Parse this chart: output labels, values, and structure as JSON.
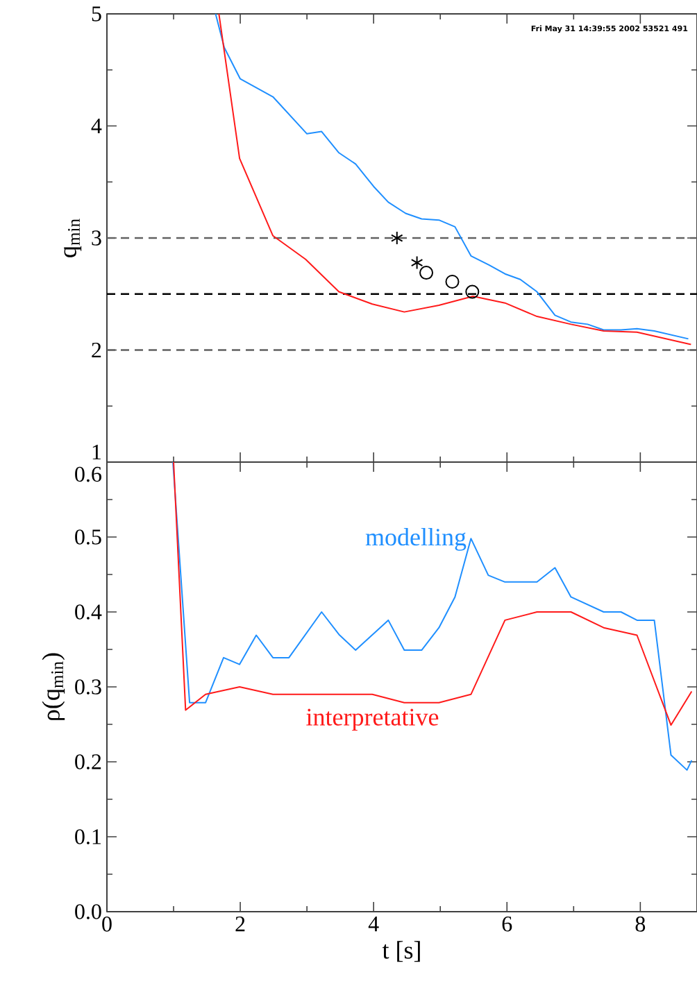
{
  "chart_data": [
    {
      "type": "line",
      "ylabel": "q$_{min}$",
      "xlim": [
        0,
        8.85
      ],
      "xticks": [
        0,
        2,
        4,
        6,
        8
      ],
      "ylim": [
        1,
        5
      ],
      "yticks": [
        1,
        2,
        3,
        4,
        5
      ],
      "tick_labels": "y",
      "annotations": [
        "Fri May 31 14:39:55 2002 53521 491"
      ],
      "ref_lines": [
        {
          "axis": "y",
          "value": 3,
          "color": "#606060",
          "line_style": "dashed"
        },
        {
          "axis": "y",
          "value": 2.5,
          "color": "#000000",
          "line_style": "dashed"
        },
        {
          "axis": "y",
          "value": 2,
          "color": "#606060",
          "line_style": "dashed"
        }
      ],
      "series": [
        {
          "color": "#1f8fff",
          "x": [
            1.63,
            1.76,
            2.0,
            2.49,
            3.0,
            3.22,
            3.48,
            3.73,
            4.0,
            4.22,
            4.48,
            4.72,
            4.98,
            5.22,
            5.46,
            5.73,
            5.97,
            6.2,
            6.45,
            6.72,
            6.96,
            7.21,
            7.45,
            7.71,
            7.95,
            8.21,
            8.72
          ],
          "values": [
            5,
            4.7,
            4.42,
            4.26,
            3.93,
            3.95,
            3.76,
            3.66,
            3.46,
            3.32,
            3.22,
            3.17,
            3.16,
            3.1,
            2.84,
            2.76,
            2.68,
            2.63,
            2.52,
            2.31,
            2.25,
            2.23,
            2.18,
            2.18,
            2.19,
            2.17,
            2.1
          ]
        },
        {
          "color": "#ff1a1a",
          "x": [
            1.68,
            1.99,
            2.49,
            2.98,
            3.48,
            3.98,
            4.46,
            4.98,
            5.49,
            5.97,
            6.45,
            6.96,
            7.45,
            7.95,
            8.76
          ],
          "values": [
            5,
            3.71,
            3.02,
            2.81,
            2.52,
            2.41,
            2.34,
            2.4,
            2.48,
            2.42,
            2.3,
            2.23,
            2.17,
            2.16,
            2.05
          ]
        },
        {
          "type": "scatter",
          "marker": "cross",
          "color": "#000000",
          "x": [
            4.35,
            4.65
          ],
          "values": [
            3.0,
            2.78
          ]
        },
        {
          "type": "scatter",
          "marker": "circle",
          "color": "#000000",
          "x": [
            4.79,
            5.18,
            5.48
          ],
          "values": [
            2.69,
            2.61,
            2.52
          ]
        }
      ]
    },
    {
      "type": "line",
      "xlabel": "t [s]",
      "ylabel": "ρ(q$_{min}$)",
      "xlim": [
        0,
        8.85
      ],
      "xticks": [
        0,
        2,
        4,
        6,
        8
      ],
      "ylim": [
        0,
        0.6
      ],
      "yticks": [
        {
          "value": 0,
          "label": "0.0"
        },
        0.1,
        0.2,
        0.3,
        0.4,
        0.5,
        0.6
      ],
      "series": [
        {
          "name": "modelling",
          "color": "#1f8fff",
          "x": [
            0.99,
            1.24,
            1.48,
            1.75,
            1.99,
            2.24,
            2.49,
            2.73,
            3.22,
            3.48,
            3.73,
            4.22,
            4.46,
            4.72,
            4.98,
            5.22,
            5.46,
            5.72,
            5.97,
            6.45,
            6.72,
            6.96,
            7.45,
            7.71,
            7.95,
            8.21,
            8.46,
            8.7,
            8.77
          ],
          "values": [
            0.6,
            0.279,
            0.279,
            0.339,
            0.33,
            0.369,
            0.339,
            0.339,
            0.4,
            0.37,
            0.349,
            0.389,
            0.349,
            0.349,
            0.379,
            0.42,
            0.498,
            0.449,
            0.44,
            0.44,
            0.459,
            0.42,
            0.4,
            0.4,
            0.389,
            0.389,
            0.209,
            0.189,
            0.202
          ]
        },
        {
          "name": "interpretative",
          "color": "#ff1a1a",
          "x": [
            1.0,
            1.18,
            1.48,
            1.99,
            2.49,
            3.98,
            4.46,
            4.98,
            5.46,
            5.97,
            6.45,
            6.96,
            7.45,
            7.95,
            8.46,
            8.77
          ],
          "values": [
            0.6,
            0.269,
            0.29,
            0.3,
            0.29,
            0.29,
            0.279,
            0.279,
            0.29,
            0.389,
            0.4,
            0.4,
            0.379,
            0.369,
            0.249,
            0.294
          ]
        }
      ]
    }
  ]
}
